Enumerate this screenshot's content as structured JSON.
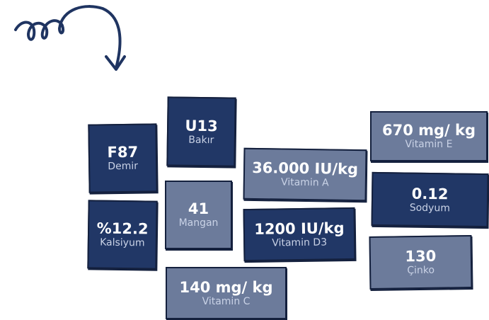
{
  "tiles": [
    {
      "value": "F87",
      "label": "Demir"
    },
    {
      "value": "U13",
      "label": "Bakır"
    },
    {
      "value": "41",
      "label": "Mangan"
    },
    {
      "value": "%12.2",
      "label": "Kalsiyum"
    },
    {
      "value": "36.000 IU/kg",
      "label": "Vitamin A"
    },
    {
      "value": "1200 IU/kg",
      "label": "Vitamin D3"
    },
    {
      "value": "140 mg/ kg",
      "label": "Vitamin C"
    },
    {
      "value": "670 mg/ kg",
      "label": "Vitamin E"
    },
    {
      "value": "0.12",
      "label": "Sodyum"
    },
    {
      "value": "130",
      "label": "Çinko"
    }
  ]
}
